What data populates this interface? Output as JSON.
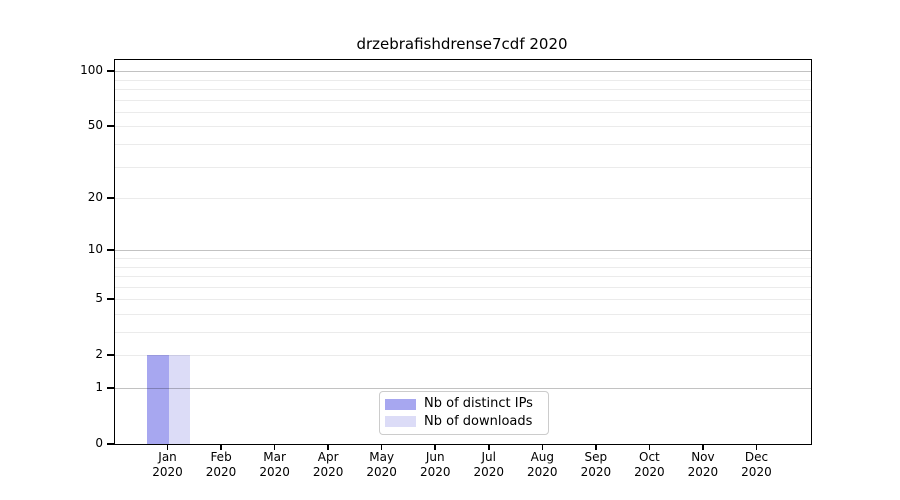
{
  "chart_data": {
    "type": "bar",
    "title": "drzebrafishdrense7cdf 2020",
    "x_tick_months": [
      "Jan",
      "Feb",
      "Mar",
      "Apr",
      "May",
      "Jun",
      "Jul",
      "Aug",
      "Sep",
      "Oct",
      "Nov",
      "Dec"
    ],
    "x_tick_year": "2020",
    "series": [
      {
        "name": "Nb of distinct IPs",
        "color": "#a7a7f0",
        "values": [
          2,
          0,
          0,
          0,
          0,
          0,
          0,
          0,
          0,
          0,
          0,
          0
        ]
      },
      {
        "name": "Nb of downloads",
        "color": "#dcdcf7",
        "values": [
          2,
          0,
          0,
          0,
          0,
          0,
          0,
          0,
          0,
          0,
          0,
          0
        ]
      }
    ],
    "yscale": "symlog",
    "ylim": [
      0,
      115
    ],
    "yticks_labeled": [
      0,
      1,
      2,
      5,
      10,
      20,
      50,
      100
    ],
    "major_gridlines": [
      1,
      10,
      100
    ],
    "minor_gridlines": [
      2,
      3,
      4,
      5,
      6,
      7,
      8,
      9,
      20,
      30,
      40,
      50,
      60,
      70,
      80,
      90
    ],
    "grid": "horizontal",
    "legend_position": "lower center"
  },
  "colors": {
    "bar_distinct_ips": "#a7a7f0",
    "bar_downloads": "#dcdcf7",
    "spine": "#000000",
    "legend_border": "#cccccc",
    "text": "#000000"
  }
}
